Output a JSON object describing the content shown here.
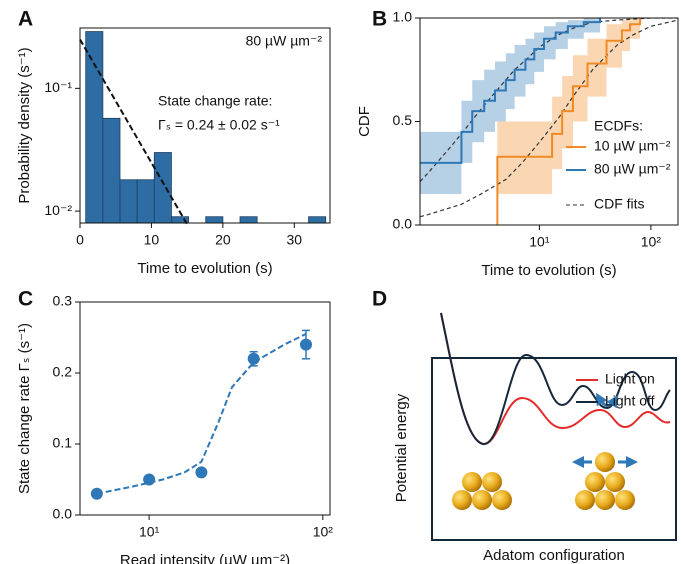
{
  "chart_data": [
    {
      "type": "histogram",
      "panel_label": "A",
      "xlabel": "Time to evolution (s)",
      "ylabel": "Probability density (s⁻¹)",
      "annotations": [
        "80 µW µm⁻²",
        "State change rate:",
        "Γₛ = 0.24 ± 0.02 s⁻¹"
      ],
      "bins": [
        0.8,
        3.2,
        5.6,
        8,
        10.4,
        12.8,
        15.2,
        17.6,
        20,
        22.4,
        24.8,
        27.2,
        29.6,
        32,
        34.4
      ],
      "values": [
        0.29,
        0.057,
        0.018,
        0.018,
        0.03,
        0.009,
        0,
        0.009,
        0,
        0.009,
        0,
        0,
        0,
        0.009
      ],
      "color": "#2e6da4",
      "fit": {
        "x": [
          0,
          15
        ],
        "values": [
          0.25,
          0.0078
        ],
        "color": "#111"
      },
      "xlim": [
        0,
        35
      ],
      "ylim": [
        0.008,
        0.31
      ],
      "yscale": "log",
      "xticks": [
        0,
        10,
        20,
        30
      ],
      "yticks": [
        {
          "value": 0.1,
          "label": "10⁻¹"
        },
        {
          "value": 0.01,
          "label": "10⁻²"
        }
      ]
    },
    {
      "type": "step",
      "panel_label": "B",
      "xlabel": "Time to evolution (s)",
      "ylabel": "CDF",
      "legend_title": "ECDFs:",
      "legend": "lower right",
      "xscale": "log",
      "series": [
        {
          "name": "10 µW µm⁻²",
          "color": "#f08a24",
          "x": [
            4.2,
            4.2,
            13,
            16,
            20,
            27,
            40,
            55,
            65,
            80
          ],
          "values": [
            0,
            0.33,
            0.44,
            0.55,
            0.67,
            0.78,
            0.89,
            0.94,
            0.97,
            1.0
          ],
          "lower": [
            0,
            0.15,
            0.27,
            0.37,
            0.5,
            0.62,
            0.76,
            0.84,
            0.9,
            0.95
          ],
          "upper": [
            0,
            0.5,
            0.62,
            0.72,
            0.82,
            0.9,
            0.97,
            0.99,
            1.0,
            1.0
          ]
        },
        {
          "name": "80 µW µm⁻²",
          "color": "#2e78b7",
          "x": [
            0.85,
            2.0,
            2.5,
            3.2,
            4,
            5,
            6,
            7.5,
            9,
            11,
            14,
            18,
            25,
            35
          ],
          "values": [
            0.3,
            0.45,
            0.55,
            0.6,
            0.65,
            0.7,
            0.75,
            0.8,
            0.85,
            0.9,
            0.93,
            0.96,
            0.98,
            1.0
          ],
          "lower": [
            0.15,
            0.3,
            0.4,
            0.45,
            0.5,
            0.56,
            0.62,
            0.68,
            0.74,
            0.8,
            0.85,
            0.9,
            0.93,
            0.97
          ],
          "upper": [
            0.45,
            0.6,
            0.7,
            0.75,
            0.79,
            0.83,
            0.87,
            0.9,
            0.93,
            0.96,
            0.98,
            0.99,
            1.0,
            1.0
          ]
        }
      ],
      "fit_label": "CDF fits",
      "fit_color": "#333",
      "fits": [
        {
          "x": [
            0.85,
            1,
            2,
            3,
            5,
            7,
            10,
            15,
            20,
            30,
            50,
            70,
            100,
            175
          ],
          "values": [
            0.04,
            0.05,
            0.1,
            0.15,
            0.22,
            0.3,
            0.4,
            0.52,
            0.62,
            0.75,
            0.87,
            0.92,
            0.96,
            0.99
          ]
        },
        {
          "x": [
            0.85,
            1,
            1.5,
            2,
            3,
            4,
            6,
            8,
            10,
            15,
            20,
            30,
            50,
            100,
            175
          ],
          "values": [
            0.21,
            0.25,
            0.36,
            0.44,
            0.56,
            0.64,
            0.75,
            0.81,
            0.86,
            0.92,
            0.95,
            0.98,
            0.99,
            1.0,
            1.0
          ]
        }
      ],
      "xlim": [
        0.85,
        175
      ],
      "ylim": [
        0,
        1.0
      ],
      "xticks": [
        {
          "value": 10,
          "label": "10¹"
        },
        {
          "value": 100,
          "label": "10²"
        }
      ],
      "yticks": [
        {
          "value": 0,
          "label": "0.0"
        },
        {
          "value": 0.5,
          "label": "0.5"
        },
        {
          "value": 1,
          "label": "1.0"
        }
      ]
    },
    {
      "type": "scatter",
      "panel_label": "C",
      "xlabel": "Read intensity (µW µm⁻²)",
      "ylabel": "State change rate Γₛ (s⁻¹)",
      "xscale": "log",
      "color": "#2e78b7",
      "x": [
        5,
        10,
        20,
        40,
        80
      ],
      "values": [
        0.03,
        0.05,
        0.06,
        0.22,
        0.24
      ],
      "errors": [
        null,
        null,
        null,
        0.01,
        0.02
      ],
      "fit": {
        "x": [
          5,
          8,
          12,
          16,
          20,
          25,
          30,
          40,
          60,
          80
        ],
        "values": [
          0.03,
          0.04,
          0.05,
          0.06,
          0.075,
          0.13,
          0.18,
          0.215,
          0.24,
          0.255
        ]
      },
      "xlim": [
        4,
        110
      ],
      "ylim": [
        0,
        0.3
      ],
      "xticks": [
        {
          "value": 10,
          "label": "10¹"
        },
        {
          "value": 100,
          "label": "10²"
        }
      ],
      "yticks": [
        {
          "value": 0,
          "label": "0.0"
        },
        {
          "value": 0.1,
          "label": "0.1"
        },
        {
          "value": 0.2,
          "label": "0.2"
        },
        {
          "value": 0.3,
          "label": "0.3"
        }
      ]
    }
  ],
  "diagram": {
    "panel_label": "D",
    "ylabel": "Potential energy",
    "xlabel": "Adatom configuration",
    "legend": [
      {
        "name": "Light on",
        "color": "#e32b2b"
      },
      {
        "name": "Light off",
        "color": "#14283a"
      }
    ]
  }
}
